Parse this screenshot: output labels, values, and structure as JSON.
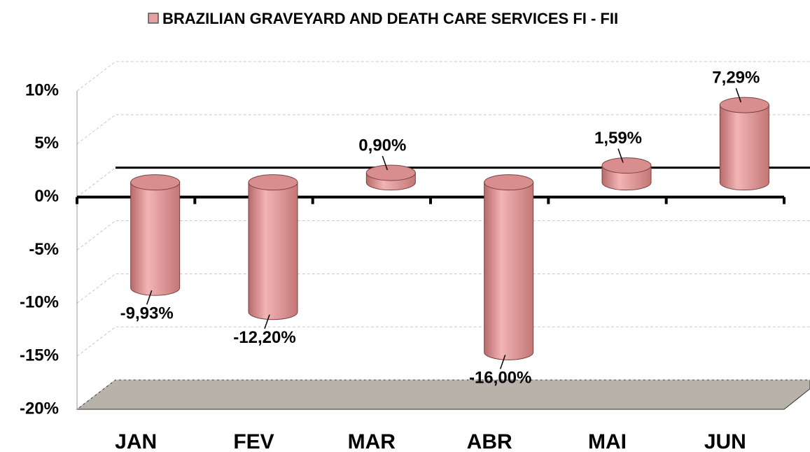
{
  "chart_data": {
    "type": "bar3d",
    "categories": [
      "JAN",
      "FEV",
      "MAR",
      "ABR",
      "MAI",
      "JUN"
    ],
    "series": [
      {
        "name": "BRAZILIAN GRAVEYARD AND DEATH CARE SERVICES FI - FII",
        "color": "#e6a0a0",
        "values": [
          -9.93,
          -12.2,
          0.9,
          -16,
          1.59,
          7.29
        ],
        "value_labels": [
          "-9,93%",
          "-12,20%",
          "0,90%",
          "-16,00%",
          "1,59%",
          "7,29%"
        ]
      }
    ],
    "ylim": [
      -20,
      10
    ],
    "yticks": [
      {
        "value": -20,
        "label": "-20%"
      },
      {
        "value": -15,
        "label": "-15%"
      },
      {
        "value": -10,
        "label": "-10%"
      },
      {
        "value": -5,
        "label": "-5%"
      },
      {
        "value": 0,
        "label": "0%"
      },
      {
        "value": 5,
        "label": "5%"
      },
      {
        "value": 10,
        "label": "10%"
      }
    ],
    "grid": true
  }
}
